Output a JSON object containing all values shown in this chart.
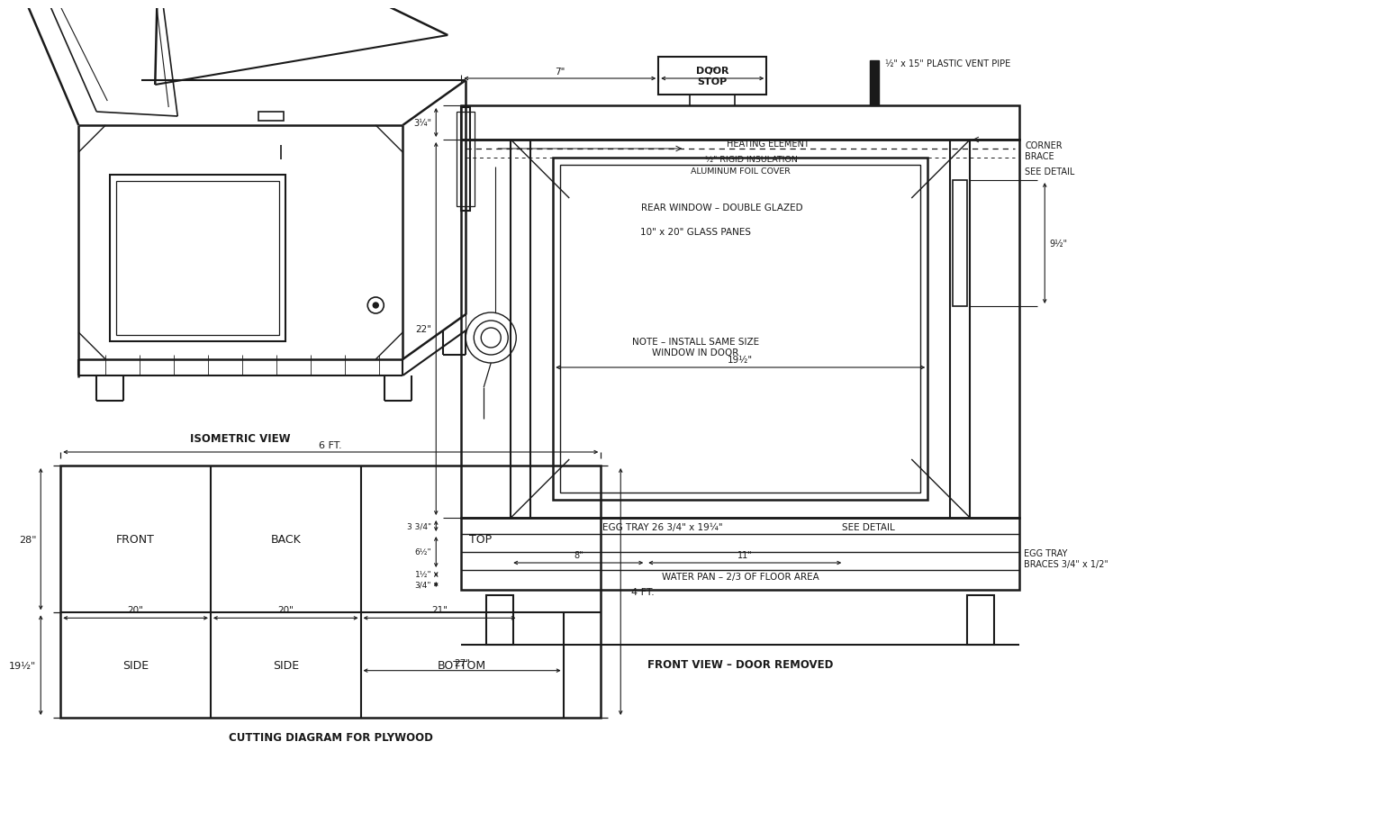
{
  "bg_color": "#ffffff",
  "line_color": "#1a1a1a",
  "title_isometric": "ISOMETRIC VIEW",
  "title_cutting": "CUTTING DIAGRAM FOR PLYWOOD",
  "title_front": "FRONT VIEW – DOOR REMOVED",
  "cutting_width": "6 FT.",
  "cutting_height_total": "4 FT.",
  "cutting_height_top": "28\"",
  "cutting_height_bottom": "19½\"",
  "cutting_dims": [
    "20\"",
    "20\"",
    "21\"",
    "27\""
  ],
  "cutting_labels_top": [
    "FRONT",
    "BACK",
    "TOP"
  ],
  "cutting_labels_bot": [
    "SIDE",
    "SIDE",
    "BOTTOM"
  ],
  "front_labels": {
    "door_stop": "DOOR\nSTOP",
    "vent": "½\" x 15\" PLASTIC VENT PIPE",
    "heating": "HEATING ELEMENT",
    "insulation": "½\" RIGID INSULATION",
    "foil": "ALUMINUM FOIL COVER",
    "rear_window": "REAR WINDOW – DOUBLE GLAZED",
    "glass_panes": "10\" x 20\" GLASS PANES",
    "note": "NOTE – INSTALL SAME SIZE\nWINDOW IN DOOR",
    "egg_tray": "EGG TRAY 26 3/4\" x 19¼\"",
    "see_detail": "SEE DETAIL",
    "water_pan": "WATER PAN – 2/3 OF FLOOR AREA",
    "egg_tray_braces": "EGG TRAY\nBRACES 3/4\" x 1/2\"",
    "corner_brace": "CORNER\nBRACE",
    "see_detail2": "SEE DETAIL"
  },
  "front_dims": {
    "7left": "7\"",
    "7mid": "7\"",
    "3quarter": "3¼\"",
    "22": "22\"",
    "9half": "9½\"",
    "3_3quarter": "3 3/4\"",
    "6half": "6½\"",
    "1half": "1½\"",
    "3quarter_bot": "3/4\"",
    "19half": "19½\"",
    "8": "8\"",
    "11": "11\""
  }
}
